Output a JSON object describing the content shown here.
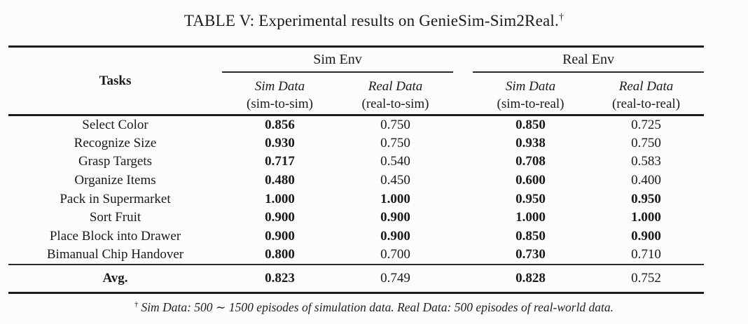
{
  "title": {
    "text": "TABLE V: Experimental results on GenieSim-Sim2Real.",
    "dagger": "†"
  },
  "colors": {
    "text": "#1a1a1a",
    "rule": "#1c1c1c",
    "background": "#fcfcfc"
  },
  "table": {
    "tasks_header": "Tasks",
    "groups": [
      {
        "label": "Sim Env",
        "columns": [
          {
            "name": "Sim Data",
            "sub": "(sim-to-sim)"
          },
          {
            "name": "Real Data",
            "sub": "(real-to-sim)"
          }
        ]
      },
      {
        "label": "Real Env",
        "columns": [
          {
            "name": "Sim Data",
            "sub": "(sim-to-real)"
          },
          {
            "name": "Real Data",
            "sub": "(real-to-real)"
          }
        ]
      }
    ],
    "rows": [
      {
        "task": "Select Color",
        "values": [
          "0.856",
          "0.750",
          "0.850",
          "0.725"
        ],
        "bold": [
          true,
          false,
          true,
          false
        ]
      },
      {
        "task": "Recognize Size",
        "values": [
          "0.930",
          "0.750",
          "0.938",
          "0.750"
        ],
        "bold": [
          true,
          false,
          true,
          false
        ]
      },
      {
        "task": "Grasp Targets",
        "values": [
          "0.717",
          "0.540",
          "0.708",
          "0.583"
        ],
        "bold": [
          true,
          false,
          true,
          false
        ]
      },
      {
        "task": "Organize Items",
        "values": [
          "0.480",
          "0.450",
          "0.600",
          "0.400"
        ],
        "bold": [
          true,
          false,
          true,
          false
        ]
      },
      {
        "task": "Pack in Supermarket",
        "values": [
          "1.000",
          "1.000",
          "0.950",
          "0.950"
        ],
        "bold": [
          true,
          true,
          true,
          true
        ]
      },
      {
        "task": "Sort Fruit",
        "values": [
          "0.900",
          "0.900",
          "1.000",
          "1.000"
        ],
        "bold": [
          true,
          true,
          true,
          true
        ]
      },
      {
        "task": "Place Block into Drawer",
        "values": [
          "0.900",
          "0.900",
          "0.850",
          "0.900"
        ],
        "bold": [
          true,
          true,
          true,
          true
        ]
      },
      {
        "task": "Bimanual Chip Handover",
        "values": [
          "0.800",
          "0.700",
          "0.730",
          "0.710"
        ],
        "bold": [
          true,
          false,
          true,
          false
        ]
      }
    ],
    "avg": {
      "label": "Avg.",
      "values": [
        "0.823",
        "0.749",
        "0.828",
        "0.752"
      ],
      "bold": [
        true,
        false,
        true,
        false
      ]
    }
  },
  "footnote": {
    "dagger": "†",
    "text": "Sim Data: 500 ∼ 1500 episodes of simulation data. Real Data: 500 episodes of real-world data."
  }
}
